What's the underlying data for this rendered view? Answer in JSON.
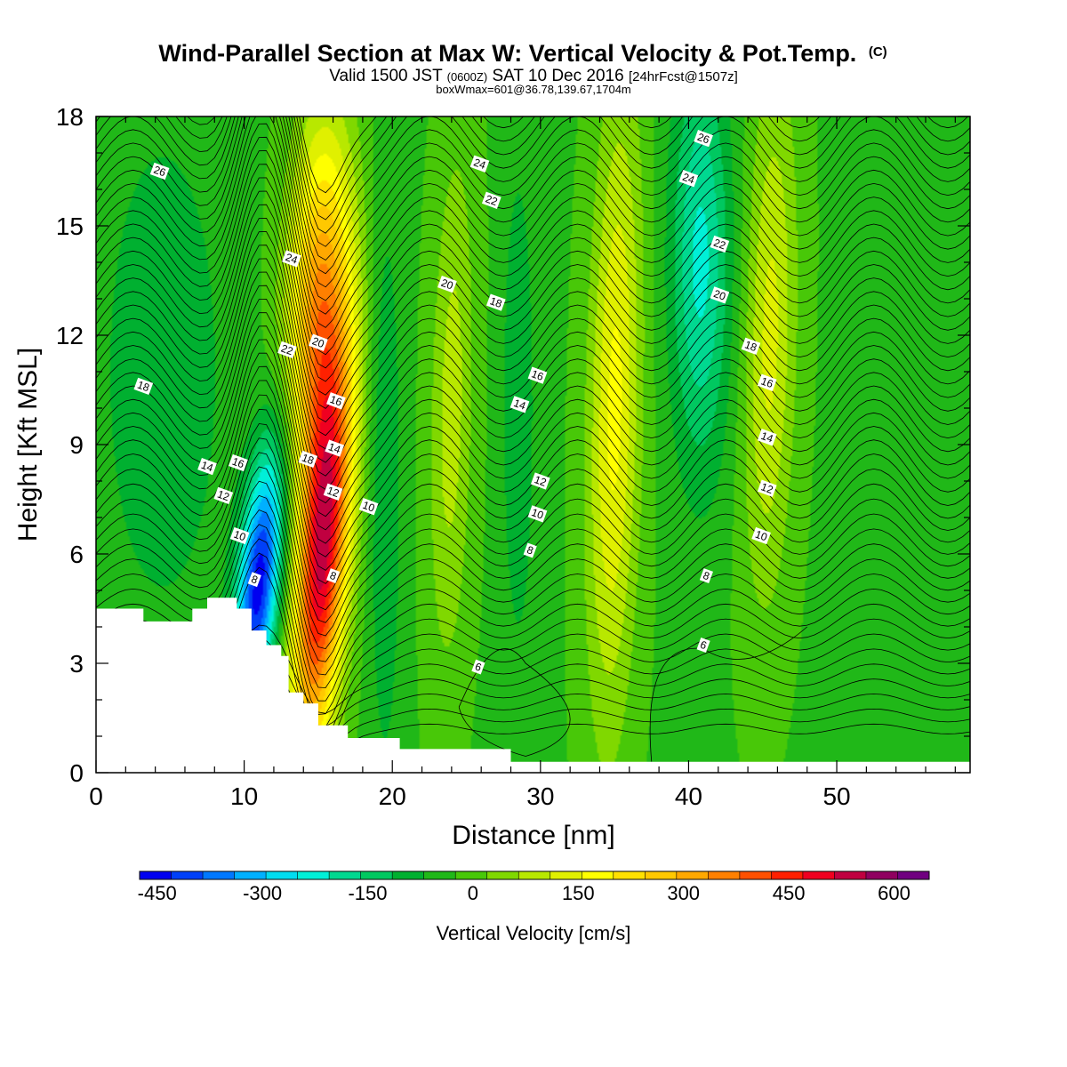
{
  "chart_data": {
    "type": "heatmap",
    "title": "Wind-Parallel Section at Max W: Vertical Velocity & Pot.Temp.",
    "title_mark": "(C)",
    "subtitle": {
      "valid": "Valid 1500 JST",
      "utc": "(0600Z)",
      "date": "SAT 10 Dec 2016",
      "forecast": "[24hrFcst@1507z]",
      "box": "boxWmax=601@36.78,139.67,1704m"
    },
    "xlabel": "Distance [nm]",
    "ylabel": "Height [Kft MSL]",
    "xlim": [
      0,
      59
    ],
    "ylim": [
      0,
      18
    ],
    "x_ticks": [
      0,
      10,
      20,
      30,
      40,
      50
    ],
    "y_ticks": [
      0,
      3,
      6,
      9,
      12,
      15,
      18
    ],
    "colorbar": {
      "title": "Vertical Velocity [cm/s]",
      "range": [
        -475,
        650
      ],
      "step": 50,
      "tick_values": [
        -450,
        -300,
        -150,
        0,
        150,
        300,
        450,
        600
      ],
      "tick_labels": [
        "-450",
        "-300",
        "-150",
        "0",
        "150",
        "300",
        "450",
        "600"
      ],
      "colors": [
        "#0000f0",
        "#0040f8",
        "#0078ff",
        "#00b0ff",
        "#00dcf0",
        "#00f0d8",
        "#00d890",
        "#00c860",
        "#00b030",
        "#20b818",
        "#48c808",
        "#80d800",
        "#b8e800",
        "#e0f000",
        "#ffff00",
        "#ffe000",
        "#ffc800",
        "#ffa800",
        "#ff8000",
        "#ff5000",
        "#ff2000",
        "#f00020",
        "#c00040",
        "#900060",
        "#700080"
      ]
    },
    "velocity_features": [
      {
        "name": "downdraft",
        "x": 11.0,
        "z": 5.2,
        "value": -470,
        "sx": 1.0,
        "sz": 2.6,
        "tilt": 0.23
      },
      {
        "name": "updraft",
        "x": 15.3,
        "z": 6.0,
        "value": 600,
        "sx": 1.2,
        "sz": 4.0,
        "tilt": 0.17
      },
      {
        "name": "updraft-upper",
        "x": 15.0,
        "z": 13.0,
        "value": 380,
        "sx": 1.5,
        "sz": 3.5,
        "tilt": 0.09
      },
      {
        "name": "downdraft-weak",
        "x": 19.5,
        "z": 8.0,
        "value": -90,
        "sx": 0.8,
        "sz": 6.0,
        "tilt": 0.0
      },
      {
        "name": "updraft-weak",
        "x": 24.0,
        "z": 10.0,
        "value": 130,
        "sx": 1.0,
        "sz": 5.0,
        "tilt": 0.05
      },
      {
        "name": "downdraft-weak-2",
        "x": 28.5,
        "z": 10.0,
        "value": -90,
        "sx": 0.8,
        "sz": 5.0,
        "tilt": 0.0
      },
      {
        "name": "updraft-wave",
        "x": 35.0,
        "z": 10.0,
        "value": 220,
        "sx": 1.2,
        "sz": 6.0,
        "tilt": 0.05
      },
      {
        "name": "downdraft-wave",
        "x": 40.8,
        "z": 14.0,
        "value": -210,
        "sx": 1.4,
        "sz": 4.0,
        "tilt": 0.0
      },
      {
        "name": "updraft-wave-2",
        "x": 45.5,
        "z": 12.0,
        "value": 170,
        "sx": 1.2,
        "sz": 5.0,
        "tilt": 0.05
      },
      {
        "name": "downdraft-west",
        "x": 4.5,
        "z": 11.0,
        "value": -90,
        "sx": 3.0,
        "sz": 5.0,
        "tilt": 0.0
      }
    ],
    "theta_labels": [
      {
        "text": "26",
        "x": 4.3,
        "y": 16.5
      },
      {
        "text": "18",
        "x": 3.2,
        "y": 10.6
      },
      {
        "text": "14",
        "x": 7.5,
        "y": 8.4
      },
      {
        "text": "16",
        "x": 9.6,
        "y": 8.5
      },
      {
        "text": "12",
        "x": 8.6,
        "y": 7.6
      },
      {
        "text": "10",
        "x": 9.7,
        "y": 6.5
      },
      {
        "text": "8",
        "x": 10.7,
        "y": 5.3
      },
      {
        "text": "24",
        "x": 13.2,
        "y": 14.1
      },
      {
        "text": "22",
        "x": 12.9,
        "y": 11.6
      },
      {
        "text": "20",
        "x": 15.0,
        "y": 11.8
      },
      {
        "text": "16",
        "x": 16.2,
        "y": 10.2
      },
      {
        "text": "18",
        "x": 14.3,
        "y": 8.6
      },
      {
        "text": "14",
        "x": 16.1,
        "y": 8.9
      },
      {
        "text": "12",
        "x": 16.0,
        "y": 7.7
      },
      {
        "text": "8",
        "x": 16.0,
        "y": 5.4
      },
      {
        "text": "10",
        "x": 18.4,
        "y": 7.3
      },
      {
        "text": "24",
        "x": 25.9,
        "y": 16.7
      },
      {
        "text": "22",
        "x": 26.7,
        "y": 15.7
      },
      {
        "text": "20",
        "x": 23.7,
        "y": 13.4
      },
      {
        "text": "18",
        "x": 27.0,
        "y": 12.9
      },
      {
        "text": "16",
        "x": 29.8,
        "y": 10.9
      },
      {
        "text": "14",
        "x": 28.6,
        "y": 10.1
      },
      {
        "text": "12",
        "x": 30.0,
        "y": 8.0
      },
      {
        "text": "10",
        "x": 29.8,
        "y": 7.1
      },
      {
        "text": "8",
        "x": 29.3,
        "y": 6.1
      },
      {
        "text": "6",
        "x": 25.8,
        "y": 2.9
      },
      {
        "text": "26",
        "x": 41.0,
        "y": 17.4
      },
      {
        "text": "24",
        "x": 40.0,
        "y": 16.3
      },
      {
        "text": "22",
        "x": 42.1,
        "y": 14.5
      },
      {
        "text": "20",
        "x": 42.1,
        "y": 13.1
      },
      {
        "text": "18",
        "x": 44.2,
        "y": 11.7
      },
      {
        "text": "16",
        "x": 45.3,
        "y": 10.7
      },
      {
        "text": "14",
        "x": 45.3,
        "y": 9.2
      },
      {
        "text": "12",
        "x": 45.3,
        "y": 7.8
      },
      {
        "text": "10",
        "x": 44.9,
        "y": 6.5
      },
      {
        "text": "8",
        "x": 41.2,
        "y": 5.4
      },
      {
        "text": "6",
        "x": 41.0,
        "y": 3.5
      }
    ],
    "terrain": [
      [
        0,
        4.5
      ],
      [
        3.2,
        4.5
      ],
      [
        3.2,
        4.15
      ],
      [
        6.5,
        4.15
      ],
      [
        6.5,
        4.5
      ],
      [
        7.5,
        4.5
      ],
      [
        7.5,
        4.8
      ],
      [
        9.5,
        4.8
      ],
      [
        9.5,
        4.5
      ],
      [
        10.5,
        4.5
      ],
      [
        10.5,
        3.9
      ],
      [
        11.5,
        3.9
      ],
      [
        11.5,
        3.5
      ],
      [
        12.5,
        3.5
      ],
      [
        12.5,
        3.2
      ],
      [
        13.0,
        3.2
      ],
      [
        13.0,
        2.2
      ],
      [
        14.0,
        2.2
      ],
      [
        14.0,
        1.9
      ],
      [
        15.0,
        1.9
      ],
      [
        15.0,
        1.3
      ],
      [
        17.0,
        1.3
      ],
      [
        17.0,
        0.95
      ],
      [
        20.5,
        0.95
      ],
      [
        20.5,
        0.65
      ],
      [
        28.0,
        0.65
      ],
      [
        28.0,
        0.3
      ],
      [
        59,
        0.3
      ]
    ]
  }
}
